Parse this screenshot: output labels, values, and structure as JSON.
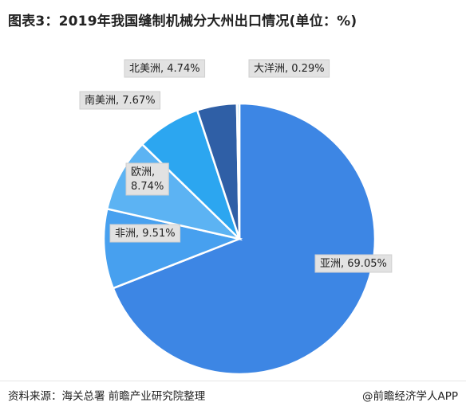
{
  "title": "图表3：2019年我国缝制机械分大州出口情况(单位：%)",
  "source": "资料来源：海关总署 前瞻产业研究院整理",
  "attribution": "@前瞻经济学人APP",
  "chart_data": {
    "type": "pie",
    "title": "图表3：2019年我国缝制机械分大州出口情况(单位：%)",
    "unit": "%",
    "slices": [
      {
        "label": "亚洲, 69.05%",
        "name": "亚洲",
        "value": 69.05,
        "color": "#3d86e4"
      },
      {
        "label": "非洲, 9.51%",
        "name": "非洲",
        "value": 9.51,
        "color": "#47a0ef"
      },
      {
        "label": "欧洲, 8.74%",
        "name": "欧洲",
        "value": 8.74,
        "color": "#5cb3f3"
      },
      {
        "label": "南美洲, 7.67%",
        "name": "南美洲",
        "value": 7.67,
        "color": "#2ca6f0"
      },
      {
        "label": "北美洲, 4.74%",
        "name": "北美洲",
        "value": 4.74,
        "color": "#2f5fa6"
      },
      {
        "label": "大洋洲, 0.29%",
        "name": "大洋洲",
        "value": 0.29,
        "color": "#8fd0f7"
      }
    ]
  }
}
